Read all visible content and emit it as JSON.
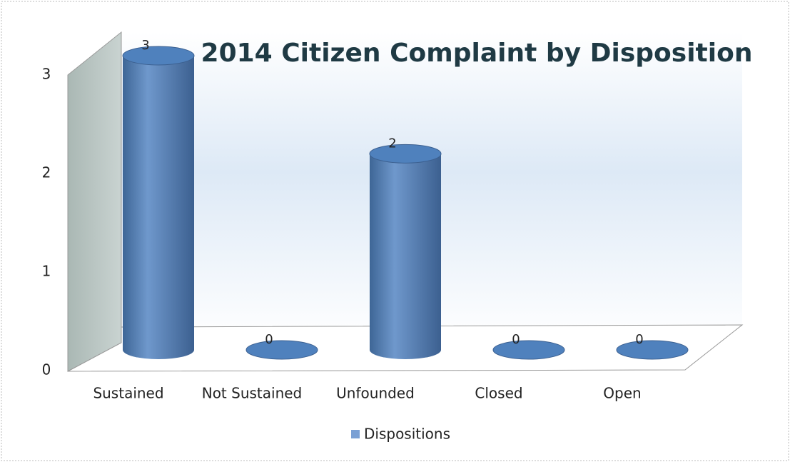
{
  "chart_data": {
    "type": "bar3d",
    "title": "2014 Citizen Complaint by Disposition",
    "categories": [
      "Sustained",
      "Not Sustained",
      "Unfounded",
      "Closed",
      "Open"
    ],
    "series": [
      {
        "name": "Dispositions",
        "color": "#4f81bd",
        "values": [
          3,
          0,
          2,
          0,
          0
        ]
      }
    ],
    "ylim": [
      0,
      3
    ],
    "yticks": [
      0,
      1,
      2,
      3
    ],
    "legend": "bottom"
  }
}
